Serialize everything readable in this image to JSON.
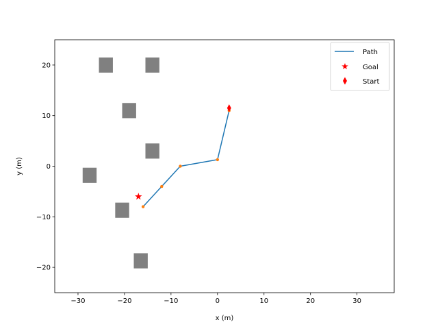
{
  "chart_data": {
    "type": "line",
    "title": "",
    "xlabel": "x (m)",
    "ylabel": "y (m)",
    "xlim": [
      -35,
      38
    ],
    "ylim": [
      -25,
      25
    ],
    "x_ticks": [
      -30,
      -20,
      -10,
      0,
      10,
      20,
      30
    ],
    "y_ticks": [
      -20,
      -10,
      0,
      10,
      20
    ],
    "x_tick_labels": [
      "−30",
      "−20",
      "−10",
      "0",
      "10",
      "20",
      "30"
    ],
    "y_tick_labels": [
      "−20",
      "−10",
      "0",
      "10",
      "20"
    ],
    "grid": false,
    "legend_position": "top-right",
    "series": [
      {
        "name": "Path",
        "color": "#1f77b4",
        "x": [
          -16,
          -12,
          -8,
          0,
          2.5,
          2.5
        ],
        "y": [
          -8,
          -4,
          0,
          1.3,
          11,
          11.5
        ]
      }
    ],
    "waypoints": {
      "color": "#ff7f0e",
      "x": [
        -16,
        -12,
        -8,
        0,
        2.5
      ],
      "y": [
        -8,
        -4,
        0,
        1.3,
        11
      ]
    },
    "goal": {
      "name": "Goal",
      "marker": "star",
      "color": "#ff0000",
      "x": -17,
      "y": -6
    },
    "start": {
      "name": "Start",
      "marker": "thin-diamond",
      "color": "#ff0000",
      "x": 2.5,
      "y": 11.5
    },
    "obstacles": {
      "color": "#808080",
      "size": 3,
      "centers": [
        {
          "x": -24,
          "y": 20
        },
        {
          "x": -14,
          "y": 20
        },
        {
          "x": -19,
          "y": 11
        },
        {
          "x": -14,
          "y": 3
        },
        {
          "x": -27.5,
          "y": -1.8
        },
        {
          "x": -20.5,
          "y": -8.7
        },
        {
          "x": -16.5,
          "y": -18.7
        }
      ]
    }
  }
}
